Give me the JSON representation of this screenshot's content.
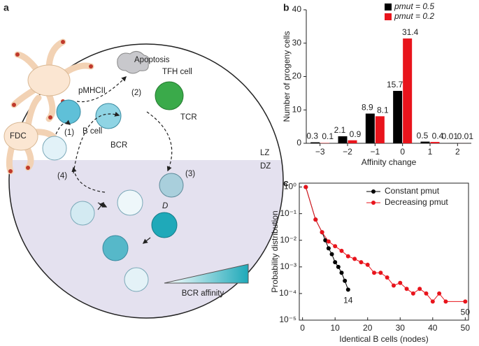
{
  "panel_labels": [
    "a",
    "b",
    "c"
  ],
  "diagram": {
    "apoptosis": "Apoptosis",
    "pmhc": "pMHCII",
    "step1": "(1)",
    "step2": "(2)",
    "step3": "(3)",
    "step4": "(4)",
    "tfh": "TFH cell",
    "tcr": "TCR",
    "bcell": "B cell",
    "bcr": "BCR",
    "lz": "LZ",
    "dz": "DZ",
    "fdc": "FDC",
    "d": "D",
    "affinity": "BCR affinity"
  },
  "chart_data": [
    {
      "type": "bar",
      "categories": [
        "−3",
        "−2",
        "−1",
        "0",
        "1",
        "2"
      ],
      "series": [
        {
          "name": "pmut = 0.5",
          "color": "#000000",
          "values": [
            0.3,
            2.1,
            8.9,
            15.7,
            0.5,
            0.01
          ]
        },
        {
          "name": "pmut = 0.2",
          "color": "#e8141c",
          "values": [
            0.1,
            0.9,
            8.1,
            31.4,
            0.4,
            0.01
          ]
        }
      ],
      "xlabel": "Affinity change",
      "ylabel": "Number of progeny cells",
      "ylim": [
        0,
        40
      ],
      "yticks": [
        0,
        10,
        20,
        30,
        40
      ],
      "legend": "top-right"
    },
    {
      "type": "line",
      "xlabel": "Identical B cells (nodes)",
      "ylabel": "Probability distribution",
      "xlim": [
        -1,
        51
      ],
      "xticks": [
        0,
        10,
        20,
        30,
        40,
        50
      ],
      "ylim": [
        1e-05,
        1.4
      ],
      "log_y": true,
      "yticks": [
        {
          "value": 1,
          "label": "10⁰"
        },
        {
          "value": 0.1,
          "label": "10⁻¹"
        },
        {
          "value": 0.01,
          "label": "10⁻²"
        },
        {
          "value": 0.001,
          "label": "10⁻³"
        },
        {
          "value": 0.0001,
          "label": "10⁻⁴"
        },
        {
          "value": 1e-05,
          "label": "10⁻⁵"
        }
      ],
      "series": [
        {
          "name": "Constant pmut",
          "color": "#000000",
          "x": [
            1,
            4,
            6,
            7,
            8,
            9,
            10,
            11,
            12,
            13,
            14
          ],
          "values": [
            1,
            0.06,
            0.02,
            0.01,
            0.005,
            0.003,
            0.0015,
            0.001,
            0.0006,
            0.0003,
            0.00014
          ]
        },
        {
          "name": "Decreasing pmut",
          "color": "#e8141c",
          "x": [
            1,
            4,
            6,
            8,
            10,
            12,
            14,
            16,
            18,
            20,
            22,
            24,
            26,
            28,
            30,
            32,
            34,
            36,
            38,
            40,
            42,
            44,
            50
          ],
          "values": [
            1,
            0.06,
            0.02,
            0.009,
            0.006,
            0.004,
            0.0025,
            0.002,
            0.0015,
            0.0012,
            0.0006,
            0.0006,
            0.0004,
            0.0002,
            0.00025,
            0.00015,
            0.0001,
            0.00015,
            0.0001,
            5e-05,
            0.0001,
            5e-05,
            5e-05
          ]
        }
      ],
      "annotations": [
        "14",
        "50"
      ],
      "legend": "top-right"
    }
  ]
}
